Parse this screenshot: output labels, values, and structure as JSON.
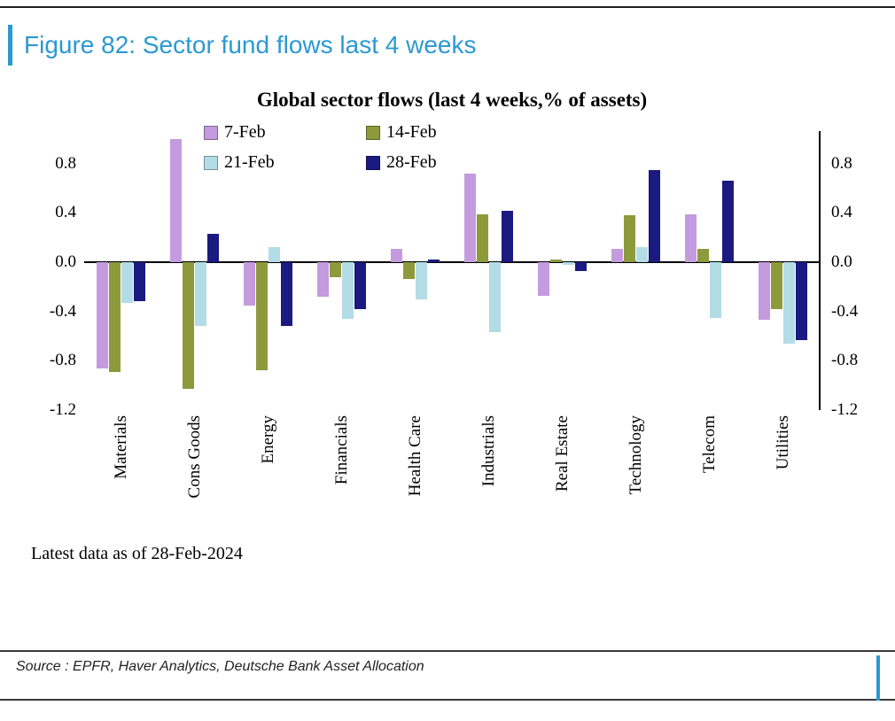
{
  "figure": {
    "title": "Figure 82: Sector fund flows last 4 weeks"
  },
  "accent_color": "#2B99D2",
  "chart_data": {
    "type": "bar",
    "title": "Global sector flows (last 4 weeks,% of assets)",
    "categories": [
      "Materials",
      "Cons Goods",
      "Energy",
      "Financials",
      "Health Care",
      "Industrials",
      "Real Estate",
      "Technology",
      "Telecom",
      "Utilities"
    ],
    "series": [
      {
        "name": "7-Feb",
        "color": "#C49BDE",
        "values": [
          -0.86,
          1.0,
          -0.35,
          -0.28,
          0.11,
          0.72,
          -0.27,
          0.11,
          0.39,
          -0.47
        ]
      },
      {
        "name": "14-Feb",
        "color": "#8C9A3C",
        "values": [
          -0.89,
          -1.03,
          -0.88,
          -0.12,
          -0.14,
          0.39,
          0.02,
          0.38,
          0.11,
          -0.38
        ]
      },
      {
        "name": "21-Feb",
        "color": "#B3DCE6",
        "values": [
          -0.33,
          -0.52,
          0.12,
          -0.46,
          -0.3,
          -0.57,
          -0.02,
          0.12,
          -0.45,
          -0.66
        ]
      },
      {
        "name": "28-Feb",
        "color": "#1A1A80",
        "values": [
          -0.32,
          0.23,
          -0.52,
          -0.38,
          0.02,
          0.42,
          -0.07,
          0.75,
          0.66,
          -0.63
        ]
      }
    ],
    "yticks": [
      0.8,
      0.4,
      0.0,
      -0.4,
      -0.8,
      -1.2
    ],
    "ylim": [
      -1.2,
      1.05
    ],
    "legend_position": "top",
    "grid": false,
    "note": "Latest data as of 28-Feb-2024"
  },
  "footer": {
    "source": "Source : EPFR, Haver Analytics, Deutsche Bank Asset Allocation"
  }
}
